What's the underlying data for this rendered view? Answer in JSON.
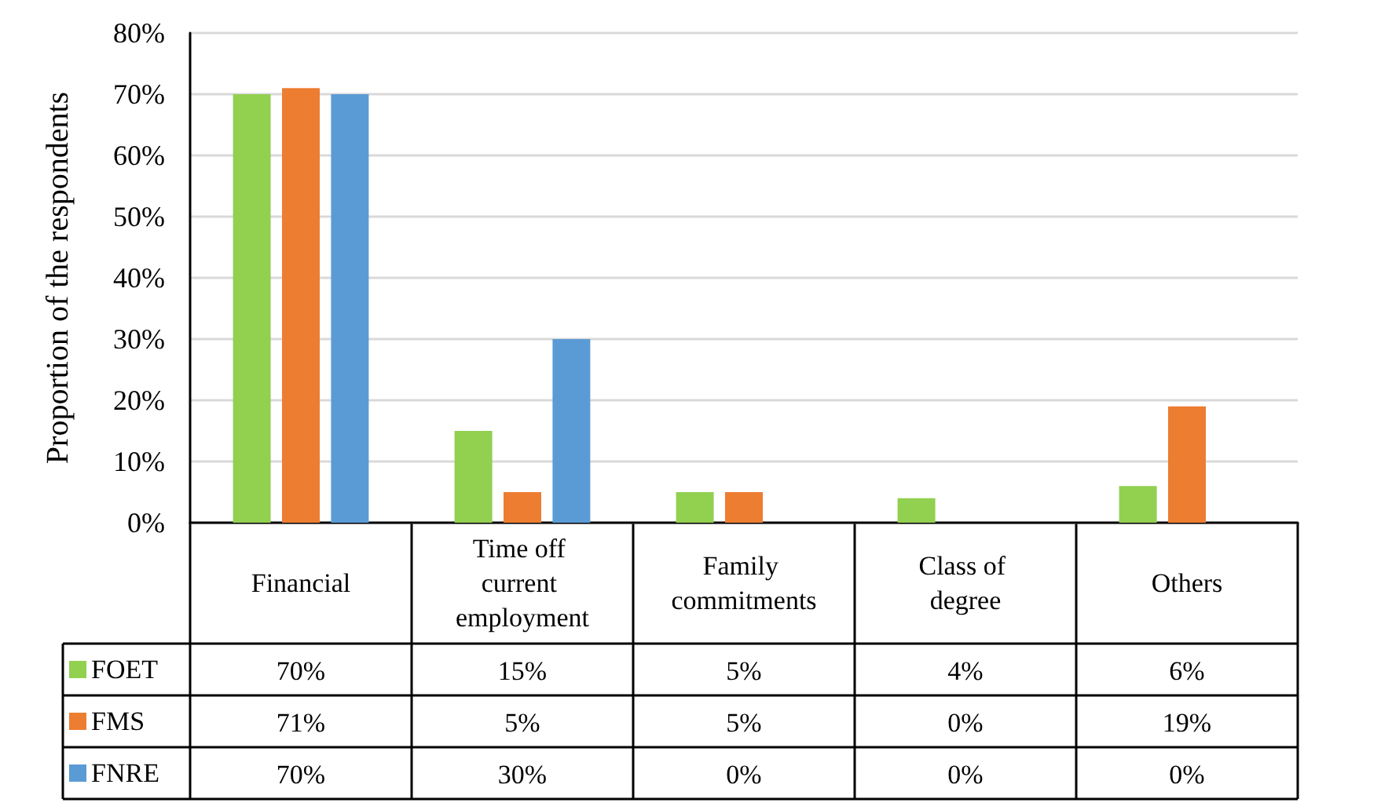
{
  "chart_data": {
    "type": "bar",
    "ylabel": "Proportion of the respondents",
    "categories": [
      "Financial",
      "Time off current employment",
      "Family commitments",
      "Class of degree",
      "Others"
    ],
    "series": [
      {
        "name": "FOET",
        "color": "#92d050",
        "values": [
          70,
          15,
          5,
          4,
          6
        ],
        "value_labels": [
          "70%",
          "15%",
          "5%",
          "4%",
          "6%"
        ]
      },
      {
        "name": "FMS",
        "color": "#ed7d31",
        "values": [
          71,
          5,
          5,
          0,
          19
        ],
        "value_labels": [
          "71%",
          "5%",
          "5%",
          "0%",
          "19%"
        ]
      },
      {
        "name": "FNRE",
        "color": "#5b9bd5",
        "values": [
          70,
          30,
          0,
          0,
          0
        ],
        "value_labels": [
          "70%",
          "30%",
          "0%",
          "0%",
          "0%"
        ]
      }
    ],
    "ylim": [
      0,
      80
    ],
    "yticks": [
      {
        "value": 0,
        "label": "0%"
      },
      {
        "value": 10,
        "label": "10%"
      },
      {
        "value": 20,
        "label": "20%"
      },
      {
        "value": 30,
        "label": "30%"
      },
      {
        "value": 40,
        "label": "40%"
      },
      {
        "value": 50,
        "label": "50%"
      },
      {
        "value": 60,
        "label": "60%"
      },
      {
        "value": 70,
        "label": "70%"
      },
      {
        "value": 80,
        "label": "80%"
      }
    ],
    "grid": "y",
    "legend": "bottom left"
  }
}
